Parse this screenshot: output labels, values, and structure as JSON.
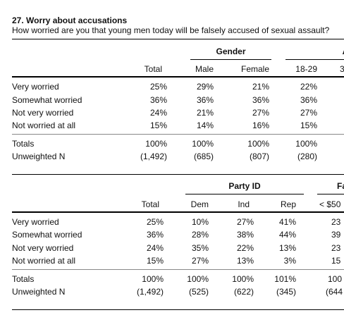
{
  "title": "27. Worry about accusations",
  "question": "How worried are you that young men today will be falsely accused of sexual assault?",
  "table1": {
    "group_header": "Gender",
    "group_header_cut": "A",
    "columns": [
      "Total",
      "Male",
      "Female",
      "18-29",
      "3"
    ],
    "rows": [
      {
        "label": "Very worried",
        "values": [
          "25%",
          "29%",
          "21%",
          "22%"
        ]
      },
      {
        "label": "Somewhat worried",
        "values": [
          "36%",
          "36%",
          "36%",
          "36%"
        ]
      },
      {
        "label": "Not very worried",
        "values": [
          "24%",
          "21%",
          "27%",
          "27%"
        ]
      },
      {
        "label": "Not worried at all",
        "values": [
          "15%",
          "14%",
          "16%",
          "15%"
        ]
      }
    ],
    "totals": {
      "label": "Totals",
      "values": [
        "100%",
        "100%",
        "100%",
        "100%"
      ]
    },
    "unweighted": {
      "label": "Unweighted N",
      "values": [
        "(1,492)",
        "(685)",
        "(807)",
        "(280)"
      ]
    }
  },
  "table2": {
    "group_header": "Party ID",
    "group_header_cut": "Fa",
    "columns": [
      "Total",
      "Dem",
      "Ind",
      "Rep",
      "< $50"
    ],
    "rows": [
      {
        "label": "Very worried",
        "values": [
          "25%",
          "10%",
          "27%",
          "41%",
          "23"
        ]
      },
      {
        "label": "Somewhat worried",
        "values": [
          "36%",
          "28%",
          "38%",
          "44%",
          "39"
        ]
      },
      {
        "label": "Not very worried",
        "values": [
          "24%",
          "35%",
          "22%",
          "13%",
          "23"
        ]
      },
      {
        "label": "Not worried at all",
        "values": [
          "15%",
          "27%",
          "13%",
          "3%",
          "15"
        ]
      }
    ],
    "totals": {
      "label": "Totals",
      "values": [
        "100%",
        "100%",
        "100%",
        "101%",
        "100"
      ]
    },
    "unweighted": {
      "label": "Unweighted N",
      "values": [
        "(1,492)",
        "(525)",
        "(622)",
        "(345)",
        "(644"
      ]
    }
  }
}
